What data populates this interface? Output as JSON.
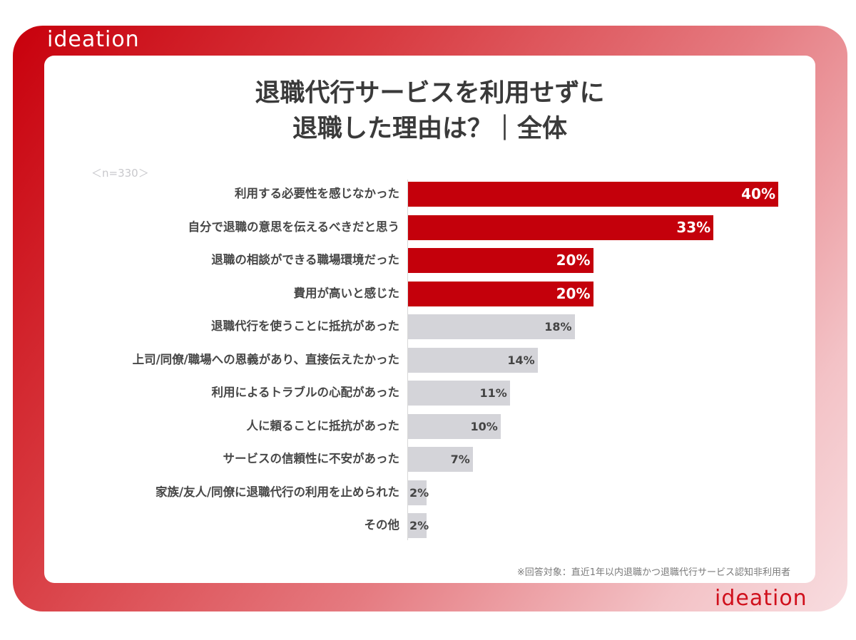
{
  "brand": {
    "logo_text": "ideation"
  },
  "title_lines": [
    "退職代行サービスを利用せずに",
    "退職した理由は？｜全体"
  ],
  "sample_size": "＜n=330＞",
  "footnote": "※回答対象：直近1年以内退職かつ退職代行サービス認知非利用者",
  "colors": {
    "highlight": "#c4000b",
    "other": "#d4d4d9",
    "frame_start": "#c8000c",
    "frame_end": "#f8dde0"
  },
  "chart_data": {
    "type": "bar",
    "orientation": "horizontal",
    "categories": [
      "利用する必要性を感じなかった",
      "自分で退職の意思を伝えるべきだと思う",
      "退職の相談ができる職場環境だった",
      "費用が高いと感じた",
      "退職代行を使うことに抵抗があった",
      "上司/同僚/職場への恩義があり、直接伝えたかった",
      "利用によるトラブルの心配があった",
      "人に頼ることに抵抗があった",
      "サービスの信頼性に不安があった",
      "家族/友人/同僚に退職代行の利用を止められた",
      "その他"
    ],
    "values": [
      40,
      33,
      20,
      20,
      18,
      14,
      11,
      10,
      7,
      2,
      2
    ],
    "value_labels": [
      "40%",
      "33%",
      "20%",
      "20%",
      "18%",
      "14%",
      "11%",
      "10%",
      "7%",
      "2%",
      "2%"
    ],
    "highlighted": [
      true,
      true,
      true,
      true,
      false,
      false,
      false,
      false,
      false,
      false,
      false
    ],
    "unit": "%",
    "xlim": [
      0,
      40
    ],
    "grid": false
  }
}
